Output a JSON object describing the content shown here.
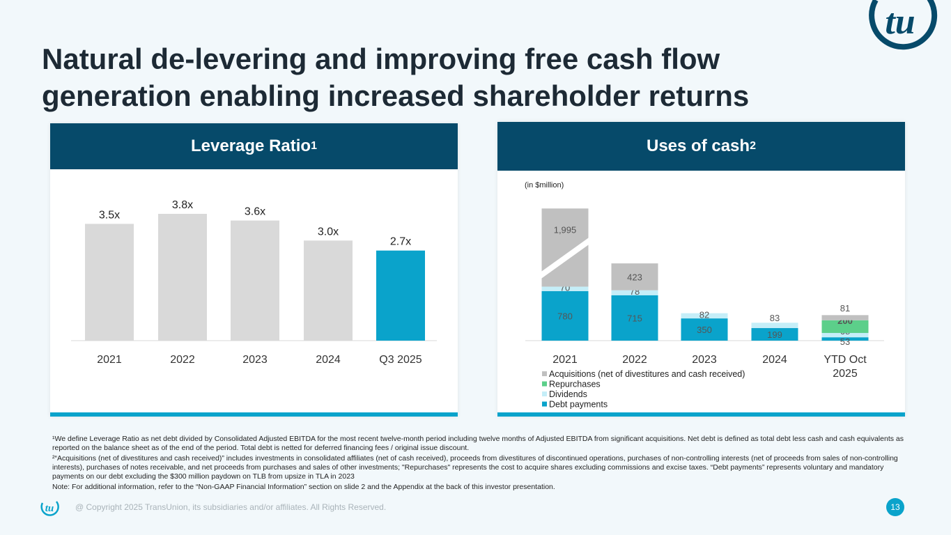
{
  "title_line1": "Natural de-levering and improving free cash flow",
  "title_line2": "generation enabling increased shareholder returns",
  "brand_colors": {
    "navy": "#064a6a",
    "teal": "#0aa3cb",
    "light_blue": "#c5eef8",
    "green": "#5ccf8a",
    "gray": "#c0c0c0",
    "bar_gray": "#d9d9d9"
  },
  "logo_text": "tu",
  "left_panel": {
    "header": "Leverage Ratio",
    "header_sup": "1"
  },
  "right_panel": {
    "header": "Uses of cash",
    "header_sup": "2",
    "unit_note": "(in $million)"
  },
  "chart_data": [
    {
      "type": "bar",
      "categories": [
        "2021",
        "2022",
        "2023",
        "2024",
        "Q3 2025"
      ],
      "values": [
        3.5,
        3.8,
        3.6,
        3.0,
        2.7
      ],
      "labels": [
        "3.5x",
        "3.8x",
        "3.6x",
        "3.0x",
        "2.7x"
      ],
      "highlight": "Q3 2025",
      "ylim": [
        0,
        4
      ],
      "grid": false
    },
    {
      "type": "bar",
      "stacked": true,
      "categories": [
        "2021",
        "2022",
        "2023",
        "2024",
        "YTD Oct 2025"
      ],
      "series": [
        {
          "name": "Debt payments",
          "color": "#0aa3cb",
          "values": [
            780,
            715,
            350,
            199,
            53
          ]
        },
        {
          "name": "Dividends",
          "color": "#c5eef8",
          "values": [
            70,
            78,
            82,
            83,
            68
          ]
        },
        {
          "name": "Repurchases",
          "color": "#5ccf8a",
          "values": [
            0,
            0,
            0,
            0,
            200
          ]
        },
        {
          "name": "Acquisitions (net of divestitures and cash received)",
          "color": "#c0c0c0",
          "values": [
            1995,
            423,
            0,
            0,
            81
          ]
        }
      ],
      "legend_order": [
        "Acquisitions (net of divestitures and cash received)",
        "Repurchases",
        "Dividends",
        "Debt payments"
      ],
      "legend_position": "bottom-left",
      "axis_break": "2021 Acquisitions",
      "grid": false
    }
  ],
  "footnotes": [
    "¹We define Leverage Ratio as net debt divided by Consolidated Adjusted EBITDA for the most recent twelve-month period including twelve months of Adjusted EBITDA from significant acquisitions. Net debt is defined as total debt less cash and cash equivalents as reported on the balance sheet as of the end of the period. Total debt is netted for deferred financing fees / original issue discount.",
    "²“Acquisitions (net of divestitures and cash received)” includes investments in consolidated affiliates (net of cash received), proceeds from divestitures of discontinued operations, purchases of non-controlling interests (net of proceeds from sales of non-controlling interests), purchases of notes receivable, and net proceeds from purchases and sales of other investments; \"Repurchases\" represents the cost to acquire shares excluding commissions and excise taxes. “Debt payments” represents voluntary and mandatory payments on our debt excluding the $300 million paydown on TLB from upsize in TLA in 2023",
    "Note: For additional information, refer to the “Non-GAAP Financial Information” section on slide 2 and the Appendix at the back of this investor presentation."
  ],
  "copyright": "@ Copyright 2025 TransUnion, its subsidiaries and/or affiliates.  All Rights Reserved.",
  "page_number": "13"
}
